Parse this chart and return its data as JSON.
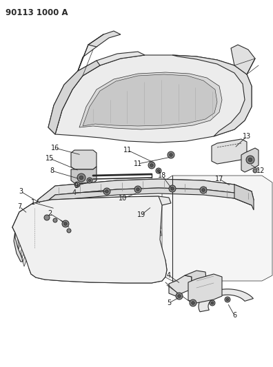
{
  "title_code": "90113 1000 A",
  "background_color": "#ffffff",
  "line_color": "#2a2a2a",
  "label_color": "#1a1a1a",
  "label_fontsize": 7.0,
  "fig_width": 3.96,
  "fig_height": 5.33,
  "dpi": 100
}
